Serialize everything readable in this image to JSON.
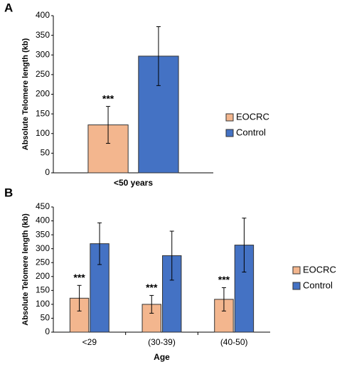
{
  "chart_data": [
    {
      "type": "bar",
      "panel": "A",
      "ylabel": "Absolute Telomere length (kb)",
      "categories": [
        "<50 years"
      ],
      "series": [
        {
          "name": "EOCRC",
          "color": "#f3b68e",
          "values": [
            122
          ],
          "errors": [
            47
          ],
          "annotations": [
            "***"
          ]
        },
        {
          "name": "Control",
          "color": "#4472c4",
          "values": [
            297
          ],
          "errors": [
            75
          ]
        }
      ],
      "ylim": [
        0,
        400
      ],
      "yticks": [
        0,
        50,
        100,
        150,
        200,
        250,
        300,
        350,
        400
      ]
    },
    {
      "type": "bar",
      "panel": "B",
      "ylabel": "Absolute Telomere length (kb)",
      "xlabel": "Age",
      "categories": [
        "<29",
        "(30-39)",
        "(40-50)"
      ],
      "series": [
        {
          "name": "EOCRC",
          "color": "#f3b68e",
          "values": [
            122,
            100,
            118
          ],
          "errors": [
            46,
            32,
            42
          ],
          "annotations": [
            "***",
            "***",
            "***"
          ]
        },
        {
          "name": "Control",
          "color": "#4472c4",
          "values": [
            318,
            275,
            313
          ],
          "errors": [
            75,
            88,
            97
          ]
        }
      ],
      "ylim": [
        0,
        450
      ],
      "yticks": [
        0,
        50,
        100,
        150,
        200,
        250,
        300,
        350,
        400,
        450
      ]
    }
  ]
}
